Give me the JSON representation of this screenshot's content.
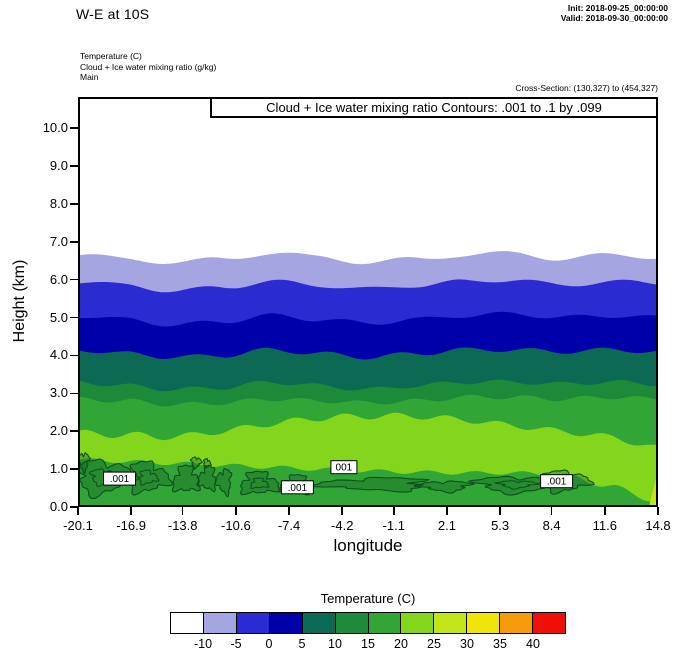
{
  "header": {
    "title": "W-E at 10S",
    "init_label": "Init: 2018-09-25_00:00:00",
    "valid_label": "Valid: 2018-09-30_00:00:00"
  },
  "field_info": {
    "line1": "Temperature   (C)",
    "line2": "Cloud + Ice water mixing ratio   (g/kg)",
    "line3": "Main",
    "line_count": 3
  },
  "cross_section_label": "Cross-Section: (130,327) to (454,327)",
  "plot": {
    "contour_title": "Cloud + Ice water mixing ratio Contours: .001 to .1 by .099",
    "xlabel": "longitude",
    "ylabel": "Height (km)",
    "x_ticks": [
      "-20.1",
      "-16.9",
      "-13.8",
      "-10.6",
      "-7.4",
      "-4.2",
      "-1.1",
      "2.1",
      "5.3",
      "8.4",
      "11.6",
      "14.8"
    ],
    "y_ticks": [
      "0.0",
      "1.0",
      "2.0",
      "3.0",
      "4.0",
      "5.0",
      "6.0",
      "7.0",
      "8.0",
      "9.0",
      "10.0"
    ]
  },
  "colorbar": {
    "title": "Temperature  (C)",
    "tick_labels": [
      "-10",
      "-5",
      "0",
      "5",
      "10",
      "15",
      "20",
      "25",
      "30",
      "35",
      "40"
    ],
    "colors": [
      "#ffffff",
      "#a5a5e2",
      "#2b2bd2",
      "#0000aa",
      "#0c6a54",
      "#1c8a38",
      "#31a637",
      "#84d61c",
      "#c2e41a",
      "#f0e40a",
      "#f59c0c",
      "#ee1008"
    ]
  },
  "chart_data": {
    "type": "heatmap",
    "subtype": "filled-contour-vertical-cross-section",
    "title": "Cloud + Ice water mixing ratio Contours: .001 to .1 by .099",
    "xlabel": "longitude",
    "ylabel": "Height (km)",
    "x_range": [
      -20.1,
      14.8
    ],
    "y_range_km": [
      0,
      10.82
    ],
    "y_top_km": 10.82,
    "shaded_field": "Temperature (C)",
    "contour_field": "Cloud + Ice water mixing ratio (g/kg)",
    "contour_levels": ".001 to .1 by .099",
    "temperature_bands": [
      {
        "range_c": "below -10",
        "color": "#ffffff"
      },
      {
        "range_c": "-10 to -5",
        "color": "#a5a5e2",
        "top_km": [
          6.65,
          6.55,
          6.45,
          6.55,
          6.7,
          6.6,
          6.45,
          6.55,
          6.65,
          6.7,
          6.55,
          6.65,
          6.6
        ]
      },
      {
        "range_c": "-5 to 0",
        "color": "#2b2bd2",
        "top_km": [
          5.95,
          5.85,
          5.7,
          5.8,
          5.95,
          5.85,
          5.75,
          5.85,
          5.95,
          6.0,
          5.85,
          5.95,
          5.9
        ]
      },
      {
        "range_c": "0 to 5",
        "color": "#0000aa",
        "top_km": [
          5.05,
          4.95,
          4.8,
          4.9,
          5.05,
          4.95,
          4.85,
          4.95,
          5.05,
          5.1,
          5.0,
          5.05,
          5.0
        ]
      },
      {
        "range_c": "5 to 10",
        "color": "#0c6a54",
        "top_km": [
          4.15,
          4.05,
          3.95,
          4.0,
          4.15,
          4.05,
          3.95,
          4.05,
          4.15,
          4.15,
          4.1,
          4.15,
          4.1
        ]
      },
      {
        "range_c": "10 to 15",
        "color": "#1c8a38",
        "top_km": [
          3.3,
          3.2,
          3.1,
          3.15,
          3.3,
          3.2,
          3.1,
          3.2,
          3.3,
          3.3,
          3.25,
          3.3,
          3.25
        ]
      },
      {
        "range_c": "15 to 20",
        "color": "#31a637",
        "top_km": [
          2.85,
          2.8,
          2.7,
          2.75,
          2.85,
          2.8,
          2.75,
          2.8,
          2.9,
          2.9,
          2.85,
          2.9,
          2.85
        ]
      },
      {
        "range_c": "20 to 25",
        "color": "#84d61c",
        "top_km": [
          1.95,
          1.9,
          1.85,
          2.0,
          2.2,
          2.35,
          2.4,
          2.4,
          2.3,
          2.15,
          2.0,
          1.85,
          1.55
        ]
      },
      {
        "range_c": "surface layer 15 to 20",
        "color": "#31a637",
        "top_km": [
          1.25,
          1.2,
          1.15,
          1.1,
          1.05,
          1.0,
          0.95,
          0.92,
          0.9,
          0.9,
          0.85,
          0.55,
          0.15
        ]
      }
    ],
    "corner_patches": [
      {
        "color": "#c2e41a",
        "points": [
          [
            14.25,
            0
          ],
          [
            14.8,
            0
          ],
          [
            14.8,
            0.95
          ],
          [
            14.5,
            0.45
          ]
        ]
      },
      {
        "color": "#f0e40a",
        "points": [
          [
            14.55,
            0
          ],
          [
            14.8,
            0
          ],
          [
            14.8,
            0.35
          ]
        ]
      }
    ],
    "cloud_contours": {
      "level_outer": ".001",
      "level_inner": ".1",
      "blobs": [
        {
          "cx": -18.6,
          "cy": 0.8,
          "rx": 1.6,
          "ry": 0.42,
          "seed": 1,
          "inner": true
        },
        {
          "cx": -15.9,
          "cy": 0.78,
          "rx": 1.15,
          "ry": 0.38,
          "seed": 2,
          "inner": true
        },
        {
          "cx": -13.6,
          "cy": 0.72,
          "rx": 0.75,
          "ry": 0.33,
          "seed": 3,
          "inner": false
        },
        {
          "cx": -12.3,
          "cy": 0.75,
          "rx": 0.5,
          "ry": 0.3,
          "seed": 4,
          "inner": false
        },
        {
          "cx": -11.3,
          "cy": 0.68,
          "rx": 0.42,
          "ry": 0.3,
          "seed": 5,
          "inner": false
        },
        {
          "cx": -19.75,
          "cy": 1.2,
          "rx": 0.3,
          "ry": 0.22,
          "seed": 6,
          "inner": false
        },
        {
          "cx": -13.0,
          "cy": 1.18,
          "rx": 0.28,
          "ry": 0.13,
          "seed": 7,
          "inner": false
        },
        {
          "cx": -12.35,
          "cy": 1.15,
          "rx": 0.2,
          "ry": 0.11,
          "seed": 8,
          "inner": false
        },
        {
          "cx": -9.2,
          "cy": 0.62,
          "rx": 1.1,
          "ry": 0.28,
          "seed": 9,
          "inner": true
        },
        {
          "cx": -7.0,
          "cy": 0.58,
          "rx": 0.85,
          "ry": 0.24,
          "seed": 10,
          "inner": false
        },
        {
          "cx": -2.2,
          "cy": 0.6,
          "rx": 3.1,
          "ry": 0.16,
          "seed": 11,
          "inner": false
        },
        {
          "cx": 2.0,
          "cy": 0.55,
          "rx": 1.4,
          "ry": 0.13,
          "seed": 12,
          "inner": false
        },
        {
          "cx": 6.3,
          "cy": 0.6,
          "rx": 2.3,
          "ry": 0.2,
          "seed": 13,
          "inner": true
        },
        {
          "cx": 9.2,
          "cy": 0.68,
          "rx": 1.3,
          "ry": 0.26,
          "seed": 14,
          "inner": false
        }
      ],
      "labels": [
        {
          "text": ".001",
          "lon": -17.6,
          "km": 0.75
        },
        {
          "text": ".001",
          "lon": -6.9,
          "km": 0.52
        },
        {
          "text": "001",
          "lon": -4.1,
          "km": 1.05
        },
        {
          "text": ".001",
          "lon": 8.7,
          "km": 0.68
        }
      ]
    }
  }
}
